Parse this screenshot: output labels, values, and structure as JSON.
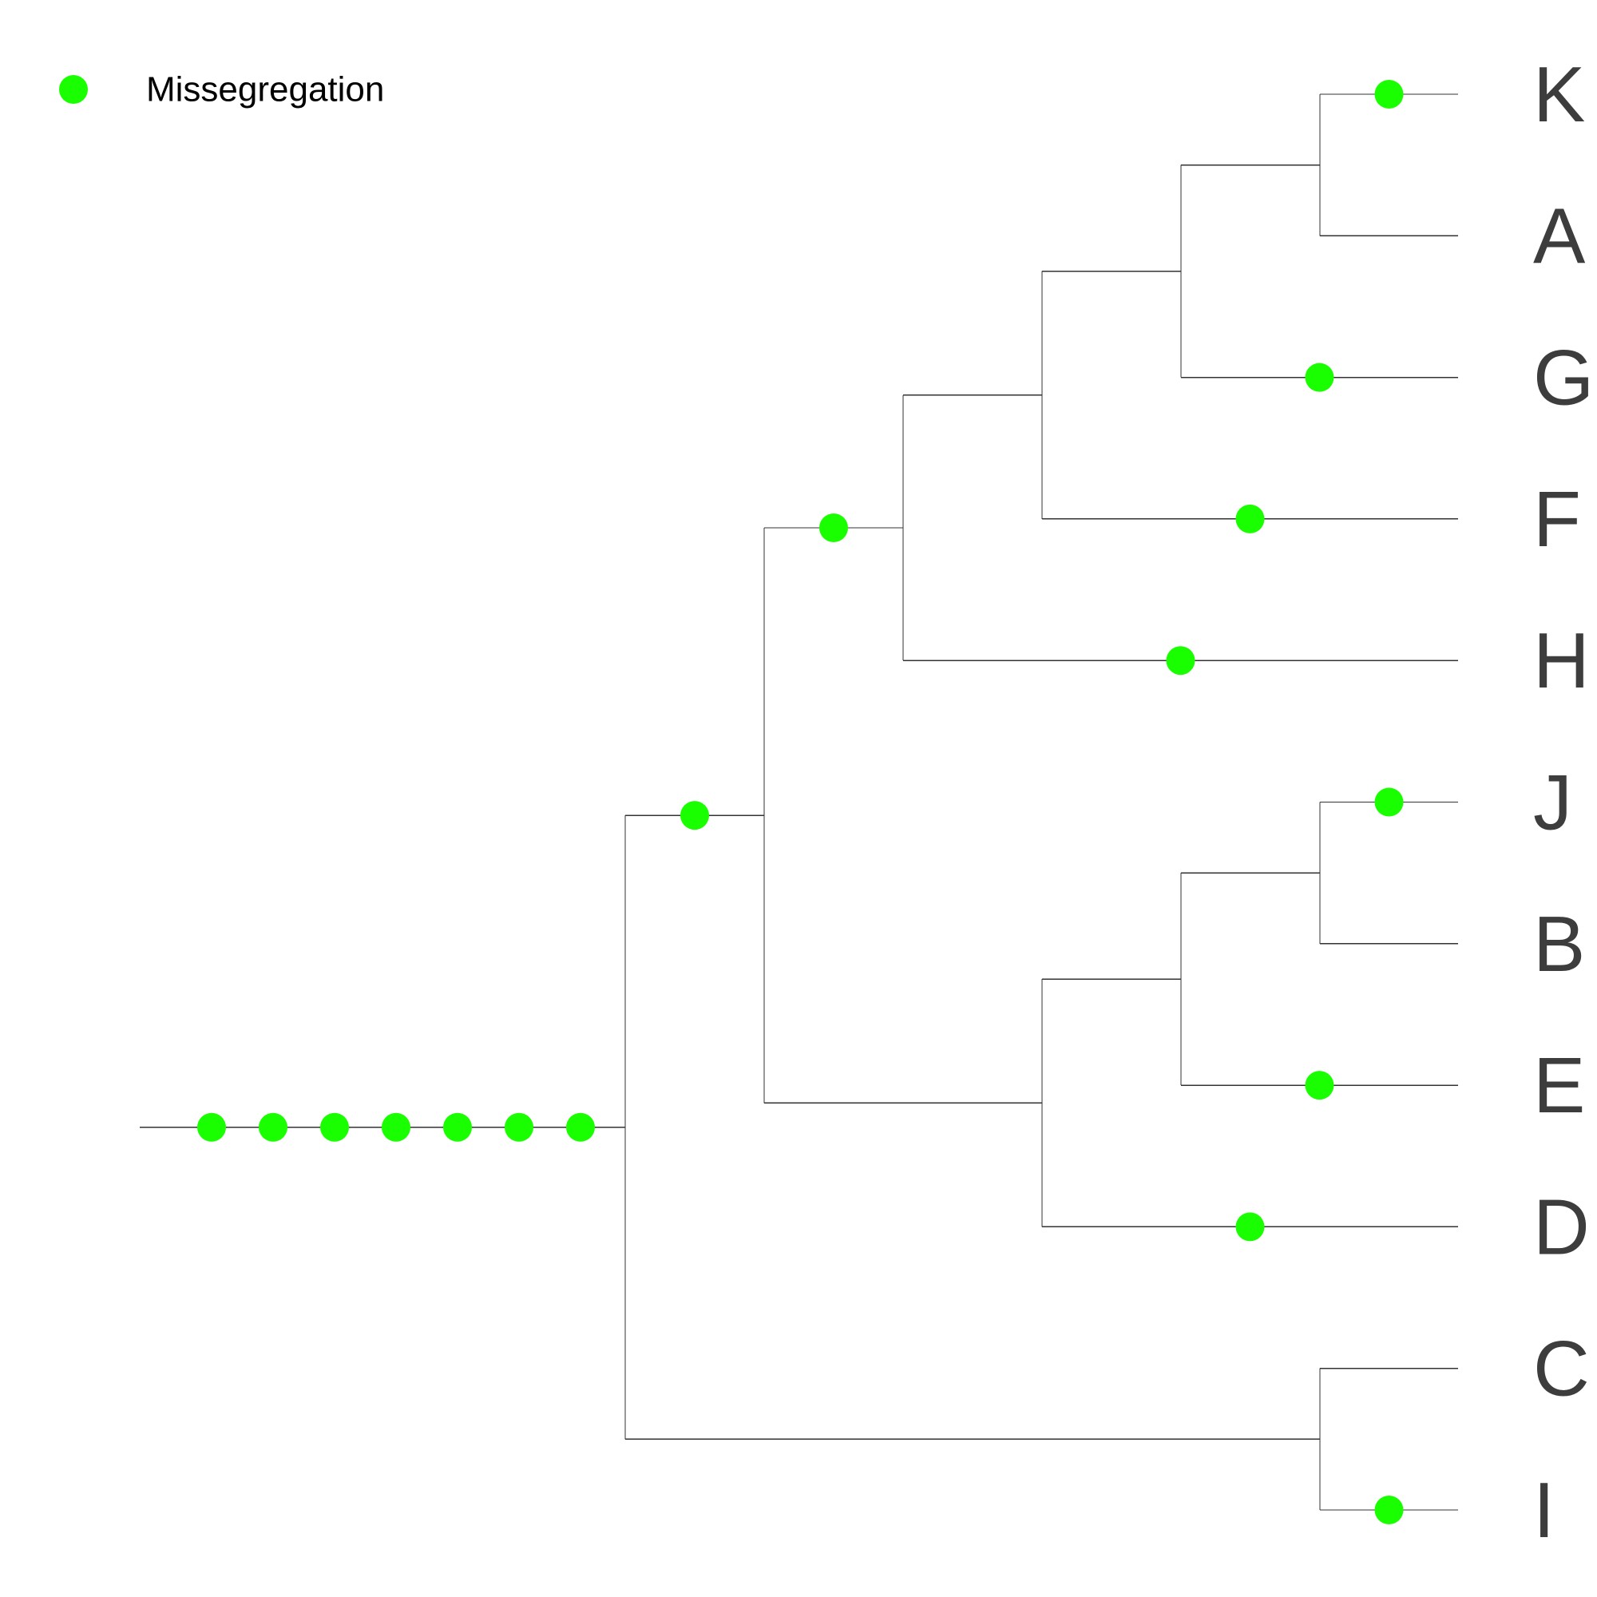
{
  "colors": {
    "event": "#19ff00",
    "branch": "#333333",
    "label": "#3d3d3d",
    "background": "#ffffff"
  },
  "legend": {
    "marker_color": "#19ff00",
    "label": "Missegregation"
  },
  "tree": {
    "tips": [
      "K",
      "A",
      "G",
      "F",
      "H",
      "J",
      "B",
      "E",
      "D",
      "C",
      "I"
    ],
    "newick": "(((((((K,A),G),F),H),(((J,B),E),D)),(C,I)));",
    "missegregation_events": [
      {
        "branch": "root stem",
        "count": 7
      },
      {
        "branch": "(K,A,G,F,H,J,B,E,D)",
        "count": 1
      },
      {
        "branch": "(K,A,G,F,H)",
        "count": 1
      },
      {
        "branch": "H",
        "count": 1
      },
      {
        "branch": "F",
        "count": 1
      },
      {
        "branch": "G",
        "count": 1
      },
      {
        "branch": "K",
        "count": 1
      },
      {
        "branch": "D",
        "count": 1
      },
      {
        "branch": "E",
        "count": 1
      },
      {
        "branch": "J",
        "count": 1
      },
      {
        "branch": "I",
        "count": 1
      }
    ]
  }
}
